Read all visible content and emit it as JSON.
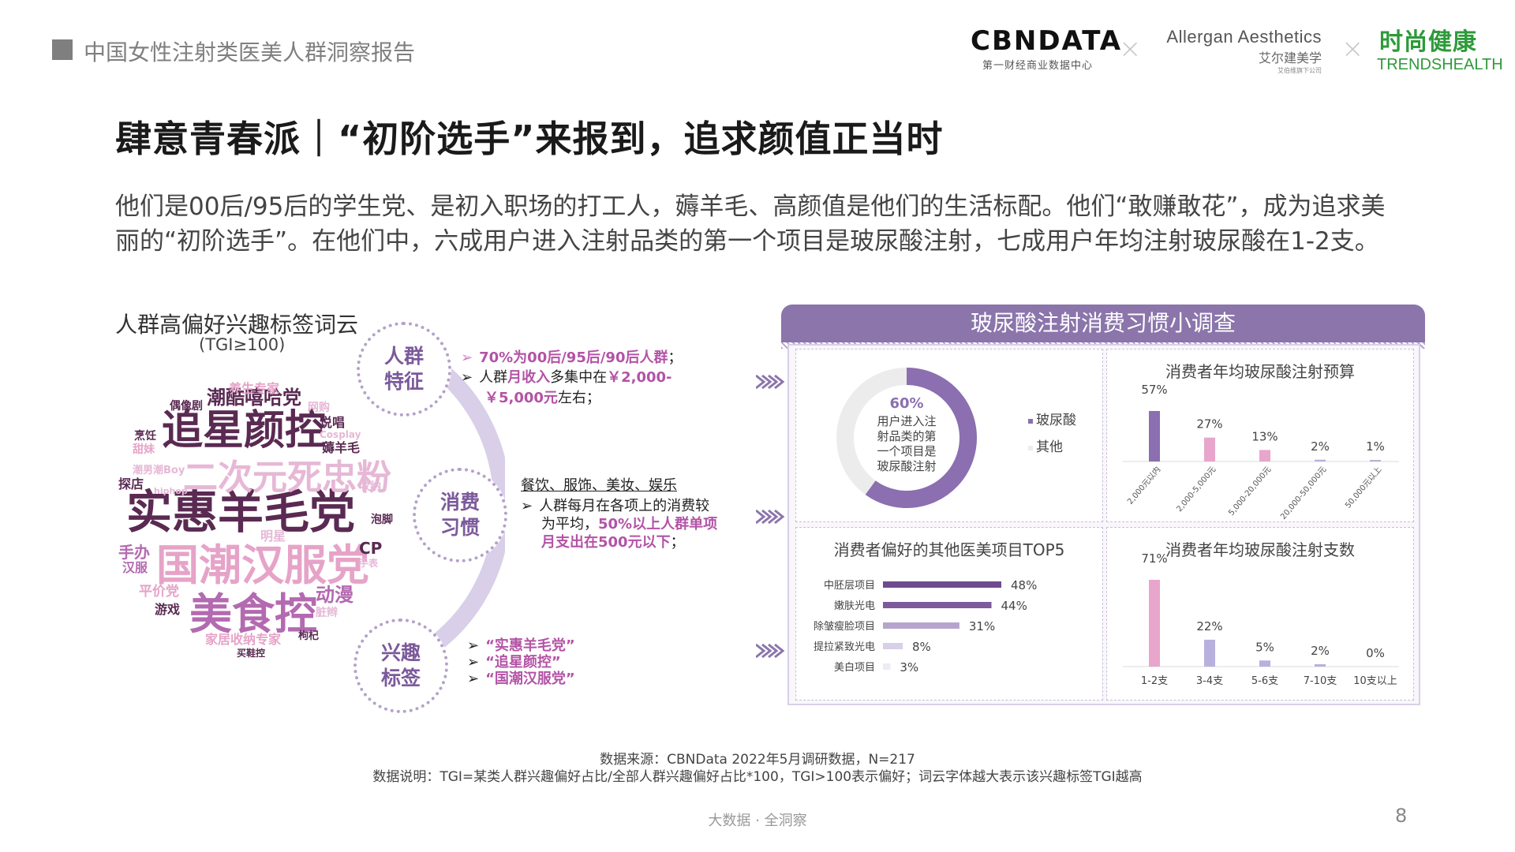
{
  "header": {
    "report_title": "中国女性注射类医美人群洞察报告",
    "logos": {
      "cbndata_main": "CBNDATA",
      "cbndata_sub": "第一财经商业数据中心",
      "allergan_main": "Allergan Aesthetics",
      "allergan_sub": "艾尔建美学",
      "allergan_sub2": "艾伯维旗下公司",
      "trends_main": "时尚健康",
      "trends_sub": "TRENDSHEALTH"
    },
    "separator": "×"
  },
  "main_title": "肆意青春派｜“初阶选手”来报到，追求颜值正当时",
  "intro": "他们是00后/95后的学生党、是初入职场的打工人，薅羊毛、高颜值是他们的生活标配。他们“敢赚敢花”，成为追求美丽的“初阶选手”。在他们中，六成用户进入注射品类的第一个项目是玻尿酸注射，七成用户年均注射玻尿酸在1-2支。",
  "wordcloud": {
    "title": "人群高偏好兴趣标签词云",
    "subtitle": "(TGI≥100)",
    "words": [
      {
        "text": "实惠羊毛党",
        "color": "#5a2a52"
      },
      {
        "text": "追星颜控",
        "color": "#5a2a52"
      },
      {
        "text": "国潮汉服党",
        "color": "#e6a3c8"
      },
      {
        "text": "美食控",
        "color": "#b36ab0"
      },
      {
        "text": "二次元死忠粉",
        "color": "#e6b8d6"
      },
      {
        "text": "潮酷嘻哈党",
        "color": "#5a2a52"
      },
      {
        "text": "养生专家",
        "color": "#e6a3c8"
      },
      {
        "text": "偶像剧",
        "color": "#5a2a52"
      },
      {
        "text": "网购",
        "color": "#e6b8d6"
      },
      {
        "text": "说唱",
        "color": "#5a2a52"
      },
      {
        "text": "Cosplay",
        "color": "#e6b8d6"
      },
      {
        "text": "烹饪",
        "color": "#5a2a52"
      },
      {
        "text": "薅羊毛",
        "color": "#5a2a52"
      },
      {
        "text": "甜妹",
        "color": "#e6a3c8"
      },
      {
        "text": "潮男潮Boy",
        "color": "#e6b8d6"
      },
      {
        "text": "探店",
        "color": "#5a2a52"
      },
      {
        "text": "hiphop",
        "color": "#e6b8d6"
      },
      {
        "text": "收纳",
        "color": "#e6b8d6"
      },
      {
        "text": "泡脚",
        "color": "#5a2a52"
      },
      {
        "text": "明星",
        "color": "#e6b8d6"
      },
      {
        "text": "手办",
        "color": "#b36ab0"
      },
      {
        "text": "汉服",
        "color": "#b36ab0"
      },
      {
        "text": "CP",
        "color": "#5a2a52"
      },
      {
        "text": "手表",
        "color": "#e6b8d6"
      },
      {
        "text": "平价党",
        "color": "#e6a3c8"
      },
      {
        "text": "动漫",
        "color": "#b36ab0"
      },
      {
        "text": "游戏",
        "color": "#5a2a52"
      },
      {
        "text": "脏辫",
        "color": "#e6b8d6"
      },
      {
        "text": "家居收纳专家",
        "color": "#e6a3c8"
      },
      {
        "text": "枸杞",
        "color": "#5a2a52"
      },
      {
        "text": "买鞋控",
        "color": "#5a2a52"
      }
    ]
  },
  "profile": {
    "circles": [
      "人群特征",
      "消费习惯",
      "兴趣标签"
    ],
    "group_b1_pre": "",
    "group_b1_hl": "70%为00后/95后/90后人群",
    "group_b1_post": "；",
    "group_b2_pre": "人群",
    "group_b2_hl1": "月收入",
    "group_b2_mid": "多集中在",
    "group_b2_hl2": "￥2,000-",
    "group_b2_hl3": "￥5,000元",
    "group_b2_post": "左右；",
    "cons_head": "餐饮、服饰、美妆、娱乐",
    "cons_b1_pre": "人群每月在各项上的消费较",
    "cons_b1_pre2": "为平均，",
    "cons_b1_hl": "50%以上人群单项",
    "cons_b1_hl2": "月支出在500元以下",
    "cons_b1_post": "；",
    "tags": [
      "“实惠羊毛党”",
      "“追星颜控”",
      "“国潮汉服党”"
    ]
  },
  "survey": {
    "title": "玻尿酸注射消费习惯小调查",
    "donut": {
      "pct_label": "60%",
      "center_lines": [
        "用户进入注",
        "射品类的第",
        "一个项目是",
        "玻尿酸注射"
      ],
      "legend": [
        "玻尿酸",
        "其他"
      ],
      "colors": [
        "#8b6fb0",
        "#ececec"
      ]
    },
    "budget": {
      "title": "消费者年均玻尿酸注射预算",
      "categories": [
        "2,000元以内",
        "2,000-5,000元",
        "5,000-20,000元",
        "20,000-50,000元",
        "50,000元以上"
      ],
      "values": [
        57,
        27,
        13,
        2,
        1
      ],
      "labels": [
        "57%",
        "27%",
        "13%",
        "2%",
        "1%"
      ],
      "colors": [
        "#8b6fb0",
        "#e8a6cc",
        "#e8a6cc",
        "#b8b0dd",
        "#b8b0dd"
      ]
    },
    "top5": {
      "title": "消费者偏好的其他医美项目TOP5",
      "categories": [
        "中胚层项目",
        "嫩肤光电",
        "除皱瘦脸项目",
        "提拉紧致光电",
        "美白项目"
      ],
      "values": [
        48,
        44,
        31,
        8,
        3
      ],
      "labels": [
        "48%",
        "44%",
        "31%",
        "8%",
        "3%"
      ],
      "colors": [
        "#6e4b8e",
        "#7d5a9c",
        "#b6a4cf",
        "#d8cfe8",
        "#ececf3"
      ]
    },
    "count": {
      "title": "消费者年均玻尿酸注射支数",
      "categories": [
        "1-2支",
        "3-4支",
        "5-6支",
        "7-10支",
        "10支以上"
      ],
      "values": [
        71,
        22,
        5,
        2,
        0
      ],
      "labels": [
        "71%",
        "22%",
        "5%",
        "2%",
        "0%"
      ],
      "colors": [
        "#e8a6cc",
        "#b8b0dd",
        "#b8b0dd",
        "#b8b0dd",
        "#b8b0dd"
      ]
    }
  },
  "footer": {
    "source": "数据来源：CBNData 2022年5月调研数据，N=217",
    "note": "数据说明：TGI=某类人群兴趣偏好占比/全部人群兴趣偏好占比*100，TGI>100表示偏好；词云字体越大表示该兴趣标签TGI越高",
    "tagline": "大数据 · 全洞察",
    "page": "8"
  }
}
